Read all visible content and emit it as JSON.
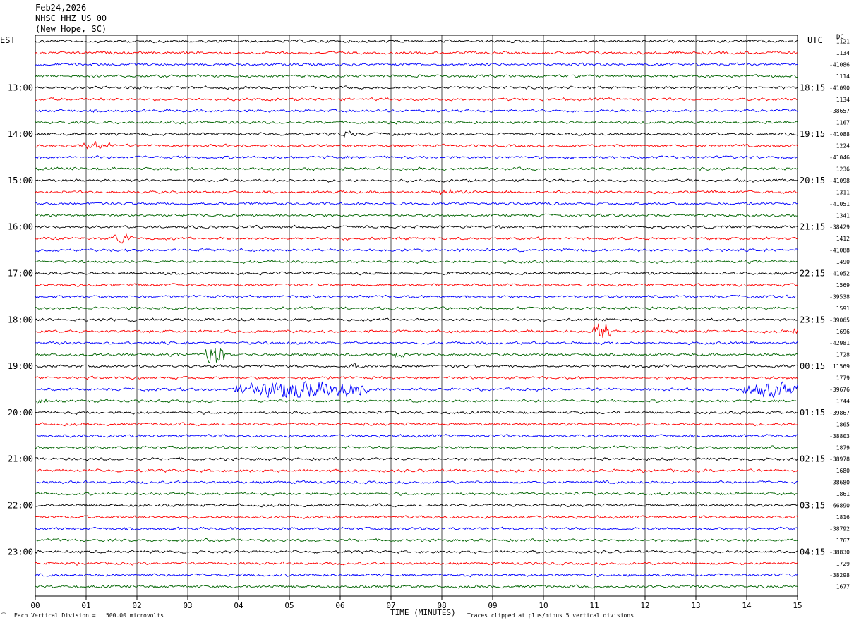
{
  "header": {
    "date": "Feb24,2026",
    "station": "NHSC HHZ US 00",
    "location": "(New Hope, SC)"
  },
  "left_axis_title": "EST",
  "right_axis_title": "UTC",
  "right_column_title": "DC",
  "footer": {
    "corner_mark": "⁀",
    "scale_note": "Each Vertical Division =   500.00 microvolts",
    "clip_note": "Traces clipped at plus/minus 5 vertical divisions"
  },
  "colors": {
    "trace_cycle": [
      "#000000",
      "#ff0000",
      "#0000ff",
      "#006400"
    ],
    "grid": "#000000",
    "background": "#ffffff"
  },
  "chart_data": {
    "type": "line",
    "title": "Feb24,2026",
    "xlabel": "TIME (MINUTES)",
    "ylabel": "",
    "xlim": [
      0,
      15
    ],
    "x_ticks": [
      "00",
      "01",
      "02",
      "03",
      "04",
      "05",
      "06",
      "07",
      "08",
      "09",
      "10",
      "11",
      "12",
      "13",
      "14",
      "15"
    ],
    "rows_per_hour": 4,
    "minutes_per_row": 15,
    "left_hour_labels": [
      "13:00",
      "14:00",
      "15:00",
      "16:00",
      "17:00",
      "18:00",
      "19:00",
      "20:00",
      "21:00",
      "22:00",
      "23:00"
    ],
    "right_hour_labels": [
      "18:15",
      "19:15",
      "20:15",
      "21:15",
      "22:15",
      "23:15",
      "00:15",
      "01:15",
      "02:15",
      "03:15",
      "04:15"
    ],
    "dc_offsets": [
      "1121",
      "1134",
      "-41086",
      "1114",
      "-41090",
      "1134",
      "-38657",
      "1167",
      "-41088",
      "1224",
      "-41046",
      "1236",
      "-41098",
      "1311",
      "-41051",
      "1341",
      "-38429",
      "1412",
      "-41088",
      "1490",
      "-41052",
      "1569",
      "-39538",
      "1591",
      "-39065",
      "1696",
      "-42981",
      "1728",
      "11569",
      "1779",
      "-39676",
      "1744",
      "-39867",
      "1865",
      "-38803",
      "1879",
      "-38978",
      "1680",
      "-38680",
      "1861",
      "-66890",
      "1816",
      "-38792",
      "1767",
      "-38830",
      "1729",
      "-38298",
      "1677"
    ],
    "events": [
      {
        "row": 9,
        "start_min": 0.9,
        "end_min": 1.5,
        "amp_divisions": 0.7
      },
      {
        "row": 8,
        "start_min": 6.0,
        "end_min": 6.3,
        "amp_divisions": 0.7
      },
      {
        "row": 13,
        "start_min": 7.9,
        "end_min": 8.3,
        "amp_divisions": 0.6
      },
      {
        "row": 17,
        "start_min": 1.5,
        "end_min": 1.9,
        "amp_divisions": 1.2
      },
      {
        "row": 25,
        "start_min": 10.95,
        "end_min": 11.35,
        "amp_divisions": 2.2
      },
      {
        "row": 25,
        "start_min": 14.9,
        "end_min": 15.0,
        "amp_divisions": 0.8
      },
      {
        "row": 27,
        "start_min": 3.35,
        "end_min": 3.75,
        "amp_divisions": 3.0
      },
      {
        "row": 27,
        "start_min": 6.95,
        "end_min": 7.25,
        "amp_divisions": 0.9
      },
      {
        "row": 28,
        "start_min": 6.1,
        "end_min": 6.45,
        "amp_divisions": 0.8
      },
      {
        "row": 30,
        "start_min": 3.9,
        "end_min": 6.6,
        "amp_divisions": 2.4
      },
      {
        "row": 30,
        "start_min": 13.9,
        "end_min": 15.0,
        "amp_divisions": 2.0
      },
      {
        "row": 31,
        "start_min": 0.0,
        "end_min": 0.25,
        "amp_divisions": 0.8
      }
    ],
    "grid": true
  }
}
